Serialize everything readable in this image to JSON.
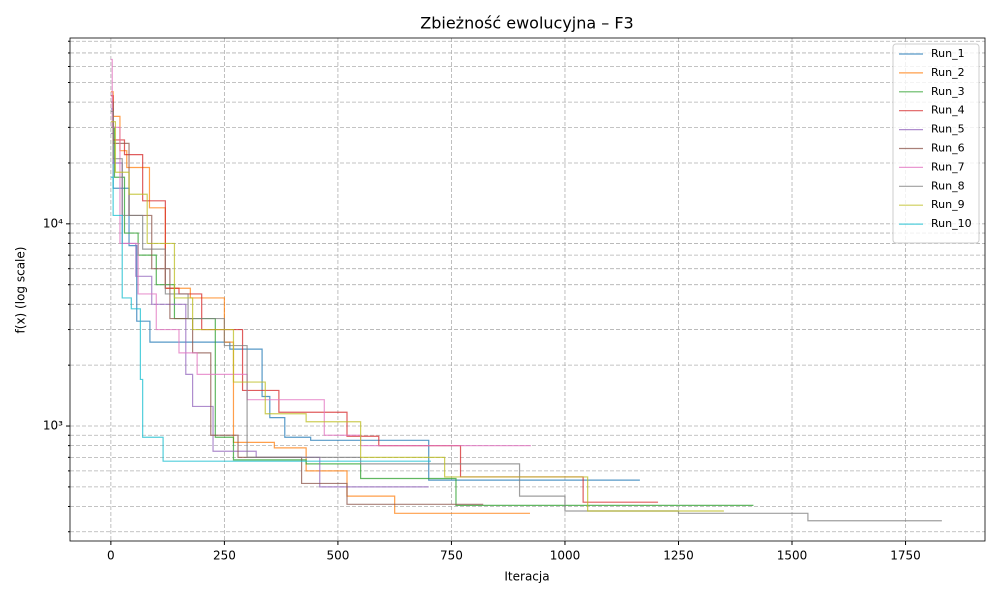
{
  "chart_data": {
    "type": "line",
    "drawstyle": "steps-post",
    "title": "Zbieżność ewolucyjna – F3",
    "x_label": "Iteracja",
    "y_label": "f(x) (log scale)",
    "xlim": [
      -90,
      1925
    ],
    "xticks": [
      0,
      250,
      500,
      750,
      1000,
      1250,
      1500,
      1750
    ],
    "ylim": [
      270,
      83000
    ],
    "yscale": "log",
    "yticks": [
      {
        "value": 1000,
        "label": "10³"
      },
      {
        "value": 10000,
        "label": "10⁴"
      }
    ],
    "yminorticks": [
      300,
      400,
      500,
      600,
      700,
      800,
      900,
      2000,
      3000,
      4000,
      5000,
      6000,
      7000,
      8000,
      9000,
      20000,
      30000,
      40000,
      50000,
      60000,
      70000,
      80000
    ],
    "grid": true,
    "legend": "upper right",
    "series": [
      {
        "name": "Run_1",
        "color": "#1f77b4",
        "x": [
          0,
          5,
          40,
          57,
          86,
          262,
          333,
          350,
          383,
          440,
          700,
          1165
        ],
        "values": [
          37000,
          15000,
          7800,
          3300,
          2600,
          2400,
          1400,
          1100,
          880,
          850,
          540,
          540
        ]
      },
      {
        "name": "Run_2",
        "color": "#ff7f0e",
        "x": [
          0,
          5,
          20,
          35,
          85,
          120,
          175,
          250,
          270,
          360,
          430,
          520,
          625,
          923
        ],
        "values": [
          45000,
          34000,
          23000,
          19000,
          12000,
          4800,
          4300,
          2600,
          830,
          780,
          600,
          450,
          370,
          370
        ]
      },
      {
        "name": "Run_3",
        "color": "#2ca02c",
        "x": [
          0,
          8,
          30,
          60,
          100,
          140,
          230,
          270,
          430,
          550,
          760,
          1415
        ],
        "values": [
          30000,
          17000,
          9000,
          7000,
          5000,
          3400,
          880,
          680,
          650,
          550,
          405,
          405
        ]
      },
      {
        "name": "Run_4",
        "color": "#d62728",
        "x": [
          0,
          5,
          30,
          70,
          120,
          150,
          200,
          290,
          370,
          520,
          590,
          770,
          1040,
          1205
        ],
        "values": [
          43000,
          26000,
          22000,
          13000,
          4800,
          4500,
          3000,
          1500,
          1170,
          890,
          800,
          560,
          420,
          420
        ]
      },
      {
        "name": "Run_5",
        "color": "#9467bd",
        "x": [
          0,
          5,
          25,
          55,
          90,
          165,
          180,
          225,
          320,
          460,
          700
        ],
        "values": [
          28000,
          20000,
          8000,
          5500,
          4000,
          1800,
          1250,
          750,
          700,
          500,
          500
        ]
      },
      {
        "name": "Run_6",
        "color": "#8c564b",
        "x": [
          0,
          5,
          40,
          90,
          130,
          180,
          220,
          280,
          420,
          520,
          820
        ],
        "values": [
          40000,
          25000,
          11000,
          6000,
          3400,
          2300,
          900,
          700,
          520,
          410,
          410
        ]
      },
      {
        "name": "Run_7",
        "color": "#e377c2",
        "x": [
          0,
          3,
          20,
          60,
          100,
          150,
          190,
          300,
          470,
          550,
          925
        ],
        "values": [
          65000,
          30000,
          8000,
          4500,
          3000,
          2300,
          1800,
          1350,
          900,
          800,
          800
        ]
      },
      {
        "name": "Run_8",
        "color": "#7f7f7f",
        "x": [
          0,
          5,
          25,
          70,
          120,
          170,
          250,
          300,
          440,
          550,
          900,
          1000,
          1250,
          1535,
          1830
        ],
        "values": [
          36000,
          21000,
          11000,
          7500,
          4500,
          3400,
          2500,
          700,
          700,
          650,
          450,
          380,
          370,
          340,
          340
        ]
      },
      {
        "name": "Run_9",
        "color": "#bcbd22",
        "x": [
          0,
          10,
          40,
          80,
          140,
          180,
          270,
          340,
          430,
          550,
          735,
          1050,
          1350
        ],
        "values": [
          32000,
          18000,
          14000,
          8000,
          4300,
          3000,
          1650,
          1150,
          1050,
          700,
          560,
          380,
          380
        ]
      },
      {
        "name": "Run_10",
        "color": "#17becf",
        "x": [
          0,
          5,
          25,
          45,
          65,
          70,
          115,
          705
        ],
        "values": [
          17000,
          11000,
          4300,
          3800,
          1700,
          880,
          670,
          670
        ]
      }
    ]
  }
}
